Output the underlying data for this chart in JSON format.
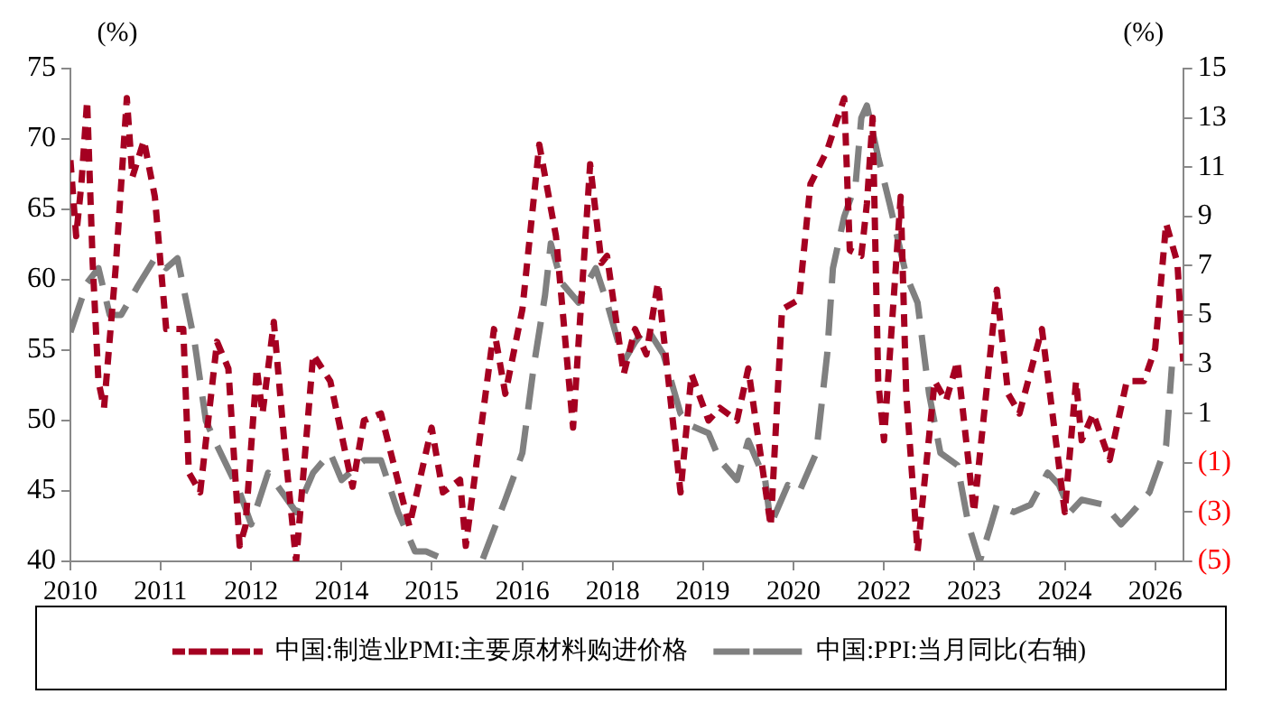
{
  "chart_data": {
    "type": "line",
    "ylabel": "(%)",
    "y2label": "(%)",
    "xlim": [
      "2010-01",
      "2026-06"
    ],
    "xticks": [
      {
        "value": "2010-01",
        "label": "2010"
      },
      {
        "value": "2011-05",
        "label": "2011"
      },
      {
        "value": "2012-09",
        "label": "2012"
      },
      {
        "value": "2014-01",
        "label": "2014"
      },
      {
        "value": "2015-05",
        "label": "2015"
      },
      {
        "value": "2016-09",
        "label": "2016"
      },
      {
        "value": "2018-01",
        "label": "2018"
      },
      {
        "value": "2019-05",
        "label": "2019"
      },
      {
        "value": "2020-09",
        "label": "2020"
      },
      {
        "value": "2022-01",
        "label": "2022"
      },
      {
        "value": "2023-05",
        "label": "2023"
      },
      {
        "value": "2024-09",
        "label": "2024"
      },
      {
        "value": "2026-01",
        "label": "2026"
      }
    ],
    "ylim": [
      40,
      75
    ],
    "yticks": [
      40,
      45,
      50,
      55,
      60,
      65,
      70,
      75
    ],
    "y2lim": [
      -5,
      15
    ],
    "y2ticks": [
      {
        "value": -5,
        "label": "(5)"
      },
      {
        "value": -3,
        "label": "(3)"
      },
      {
        "value": -1,
        "label": "(1)"
      },
      1,
      3,
      5,
      7,
      9,
      11,
      13,
      15
    ],
    "legend": "bottom",
    "grid": false,
    "marker": "none",
    "series": [
      {
        "name": "中国:制造业PMI:主要原材料购进价格",
        "color": "#a50021",
        "line_style": "dashed",
        "x": [
          "2010-01",
          "2010-02",
          "2010-03",
          "2010-04",
          "2010-05",
          "2010-06",
          "2010-07",
          "2010-09",
          "2010-11",
          "2010-12",
          "2011-02",
          "2011-04",
          "2011-06",
          "2011-09",
          "2011-10",
          "2011-12",
          "2012-03",
          "2012-05",
          "2012-07",
          "2012-08",
          "2012-10",
          "2012-11",
          "2013-01",
          "2013-03",
          "2013-05",
          "2013-06",
          "2013-08",
          "2013-11",
          "2014-03",
          "2014-05",
          "2014-08",
          "2015-01",
          "2015-05",
          "2015-07",
          "2015-10",
          "2015-11",
          "2016-04",
          "2016-06",
          "2016-09",
          "2016-12",
          "2017-03",
          "2017-06",
          "2017-09",
          "2017-11",
          "2017-12",
          "2018-03",
          "2018-05",
          "2018-07",
          "2018-09",
          "2019-01",
          "2019-03",
          "2019-06",
          "2019-08",
          "2019-11",
          "2020-01",
          "2020-05",
          "2020-07",
          "2020-10",
          "2020-12",
          "2021-03",
          "2021-06",
          "2021-07",
          "2021-09",
          "2021-10",
          "2021-11",
          "2021-12",
          "2022-01",
          "2022-04",
          "2022-05",
          "2022-07",
          "2022-10",
          "2022-12",
          "2023-02",
          "2023-05",
          "2023-09",
          "2023-11",
          "2024-01",
          "2024-05",
          "2024-09",
          "2024-11",
          "2024-12",
          "2025-02",
          "2025-05",
          "2025-08",
          "2025-11",
          "2026-01",
          "2026-03",
          "2026-05",
          "2026-06"
        ],
        "values": [
          68.5,
          63.1,
          66.8,
          72.7,
          61.2,
          52.8,
          50.9,
          60.7,
          72.9,
          67.3,
          69.9,
          65.9,
          56.5,
          56.5,
          46.3,
          44.9,
          55.6,
          53.7,
          41.1,
          42.5,
          53.7,
          50.5,
          57.0,
          48.1,
          40,
          44.9,
          54.7,
          52.8,
          45.3,
          50.0,
          50.5,
          42.5,
          49.5,
          44.9,
          45.8,
          41.1,
          56.5,
          51.9,
          57.9,
          69.6,
          63.1,
          49.5,
          68.2,
          61.2,
          61.7,
          53.3,
          56.5,
          54.7,
          59.8,
          44.9,
          53.3,
          50.0,
          50.9,
          50.0,
          53.7,
          42.5,
          57.9,
          58.6,
          66.8,
          69.2,
          72.9,
          62.1,
          61.7,
          65.4,
          71.5,
          52.8,
          48.6,
          65.9,
          51.9,
          40.7,
          52.8,
          51.4,
          54.2,
          43.5,
          59.3,
          51.9,
          50.5,
          56.5,
          43.5,
          52.8,
          48.6,
          50.5,
          47.2,
          52.8,
          52.8,
          55.1,
          64.0,
          61.2,
          54.2
        ]
      },
      {
        "name": "中国:PPI:当月同比(右轴)",
        "color": "#808080",
        "line_style": "dashed",
        "axis": "y2",
        "x": [
          "2010-01",
          "2010-04",
          "2010-06",
          "2010-08",
          "2010-10",
          "2011-01",
          "2011-04",
          "2011-06",
          "2011-08",
          "2011-11",
          "2012-01",
          "2012-03",
          "2012-07",
          "2012-09",
          "2012-12",
          "2013-05",
          "2013-08",
          "2013-11",
          "2014-01",
          "2014-05",
          "2014-08",
          "2014-11",
          "2015-02",
          "2015-04",
          "2015-07",
          "2015-11",
          "2016-02",
          "2016-06",
          "2016-09",
          "2016-11",
          "2017-01",
          "2017-02",
          "2017-04",
          "2017-07",
          "2017-08",
          "2017-10",
          "2017-12",
          "2018-03",
          "2018-05",
          "2018-07",
          "2018-10",
          "2019-01",
          "2019-03",
          "2019-06",
          "2019-08",
          "2019-11",
          "2020-01",
          "2020-04",
          "2020-05",
          "2020-08",
          "2020-10",
          "2021-01",
          "2021-03",
          "2021-04",
          "2021-06",
          "2021-08",
          "2021-09",
          "2021-10",
          "2021-12",
          "2022-02",
          "2022-05",
          "2022-07",
          "2022-09",
          "2022-11",
          "2023-02",
          "2023-04",
          "2023-06",
          "2023-08",
          "2023-09",
          "2023-12",
          "2024-03",
          "2024-06",
          "2024-08",
          "2024-10",
          "2024-12",
          "2025-04",
          "2025-07",
          "2025-09",
          "2025-12",
          "2026-03",
          "2026-04"
        ],
        "values": [
          4.3,
          6.3,
          6.9,
          5.0,
          5.0,
          6.2,
          7.3,
          6.9,
          7.3,
          3.9,
          0.7,
          -0.3,
          -2.2,
          -3.5,
          -1.4,
          -3.0,
          -1.4,
          -0.6,
          -1.7,
          -0.9,
          -0.9,
          -3.0,
          -4.6,
          -4.6,
          -4.9,
          null,
          -4.9,
          -2.5,
          -0.6,
          2.9,
          5.8,
          7.9,
          6.3,
          5.5,
          6.1,
          6.9,
          5.5,
          3.1,
          3.9,
          4.5,
          3.4,
          1.0,
          0.5,
          0.2,
          -0.9,
          -1.7,
          -0.1,
          -1.7,
          -3.5,
          -1.9,
          -2.2,
          -0.6,
          3.4,
          6.9,
          9.0,
          10.3,
          13.0,
          13.5,
          11.4,
          9.5,
          6.6,
          5.5,
          1.8,
          -0.6,
          -1.1,
          -3.5,
          -5,
          -3.5,
          -2.7,
          -3.0,
          -2.7,
          -1.4,
          -1.9,
          -3.0,
          -2.5,
          -2.7,
          -3.5,
          -3.0,
          -2.2,
          -0.3,
          2.9
        ]
      }
    ]
  }
}
